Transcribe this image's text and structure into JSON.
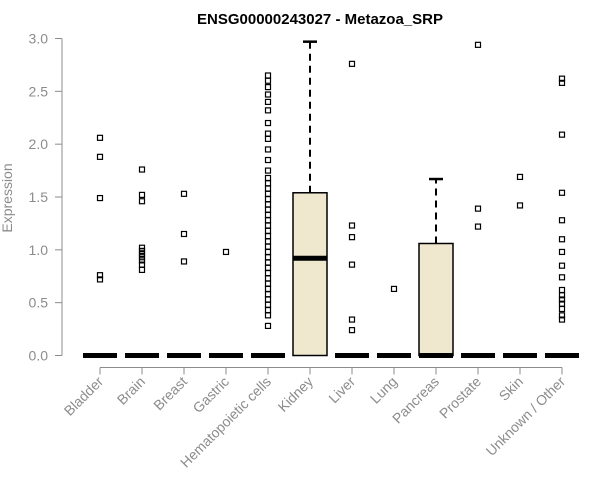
{
  "chart_data": {
    "type": "boxplot",
    "title": "ENSG00000243027 - Metazoa_SRP",
    "xlabel": "",
    "ylabel": "Expression",
    "ylim": [
      0,
      3.0
    ],
    "yticks": [
      "0.0",
      "0.5",
      "1.0",
      "1.5",
      "2.0",
      "2.5",
      "3.0"
    ],
    "grid": false,
    "legend": "none",
    "categories": [
      "Bladder",
      "Brain",
      "Breast",
      "Gastric",
      "Hematopoietic cells",
      "Kidney",
      "Liver",
      "Lung",
      "Pancreas",
      "Prostate",
      "Skin",
      "Unknown / Other"
    ],
    "box_fill": "#efe8cf",
    "stats": [
      {
        "category": "Bladder",
        "min": 0,
        "q1": 0,
        "median": 0,
        "q3": 0,
        "max": 0,
        "outliers": [
          0.72,
          0.76,
          1.49,
          1.88,
          2.06
        ]
      },
      {
        "category": "Brain",
        "min": 0,
        "q1": 0,
        "median": 0,
        "q3": 0,
        "max": 0,
        "outliers": [
          0.81,
          0.86,
          0.9,
          0.93,
          0.96,
          0.99,
          1.02,
          1.46,
          1.52,
          1.76
        ]
      },
      {
        "category": "Breast",
        "min": 0,
        "q1": 0,
        "median": 0,
        "q3": 0,
        "max": 0,
        "outliers": [
          0.89,
          1.15,
          1.53
        ]
      },
      {
        "category": "Gastric",
        "min": 0,
        "q1": 0,
        "median": 0,
        "q3": 0,
        "max": 0,
        "outliers": [
          0.98
        ]
      },
      {
        "category": "Hematopoietic cells",
        "min": 0,
        "q1": 0,
        "median": 0,
        "q3": 0,
        "max": 0,
        "outliers": [
          0.28,
          0.38,
          0.43,
          0.48,
          0.53,
          0.58,
          0.63,
          0.68,
          0.73,
          0.78,
          0.83,
          0.88,
          0.93,
          0.98,
          1.03,
          1.08,
          1.13,
          1.18,
          1.23,
          1.28,
          1.33,
          1.38,
          1.43,
          1.48,
          1.53,
          1.58,
          1.63,
          1.68,
          1.75,
          1.85,
          1.95,
          2.05,
          2.1,
          2.2,
          2.32,
          2.4,
          2.47,
          2.54,
          2.6,
          2.65
        ]
      },
      {
        "category": "Kidney",
        "min": 0,
        "q1": 0,
        "median": 0.92,
        "q3": 1.54,
        "max": 2.97,
        "outliers": []
      },
      {
        "category": "Liver",
        "min": 0,
        "q1": 0,
        "median": 0,
        "q3": 0,
        "max": 0,
        "outliers": [
          0.24,
          0.34,
          0.86,
          1.12,
          1.23,
          2.76
        ]
      },
      {
        "category": "Lung",
        "min": 0,
        "q1": 0,
        "median": 0,
        "q3": 0,
        "max": 0,
        "outliers": [
          0.63
        ]
      },
      {
        "category": "Pancreas",
        "min": 0,
        "q1": 0,
        "median": 0,
        "q3": 1.06,
        "max": 1.67,
        "outliers": []
      },
      {
        "category": "Prostate",
        "min": 0,
        "q1": 0,
        "median": 0,
        "q3": 0,
        "max": 0,
        "outliers": [
          1.22,
          1.39,
          2.94
        ]
      },
      {
        "category": "Skin",
        "min": 0,
        "q1": 0,
        "median": 0,
        "q3": 0,
        "max": 0,
        "outliers": [
          1.42,
          1.69
        ]
      },
      {
        "category": "Unknown / Other",
        "min": 0,
        "q1": 0,
        "median": 0,
        "q3": 0,
        "max": 0,
        "outliers": [
          0.34,
          0.38,
          0.44,
          0.49,
          0.53,
          0.57,
          0.62,
          0.74,
          0.85,
          0.98,
          1.1,
          1.28,
          1.54,
          2.09,
          2.58,
          2.62
        ]
      }
    ]
  }
}
